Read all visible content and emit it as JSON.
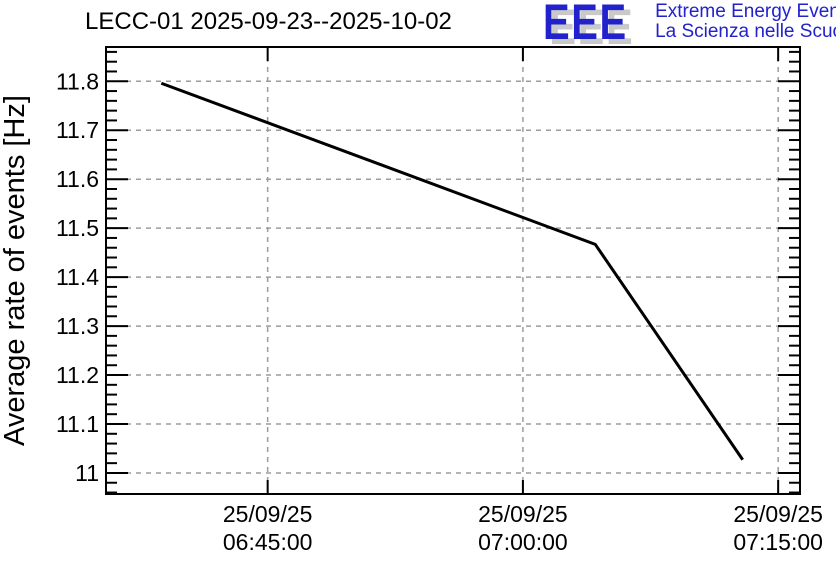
{
  "header": {
    "title": "LECC-01 2025-09-23--2025-10-02"
  },
  "logo": {
    "letters": "EEE",
    "line1": "Extreme Energy Events",
    "line2": "La Scienza nelle Scuole",
    "text_color": "#2222cc",
    "shadow_color": "#c9c9c9"
  },
  "chart_data": {
    "type": "line",
    "title": "LECC-01 2025-09-23--2025-10-02",
    "ylabel": "Average rate of events [Hz]",
    "xlabel": "",
    "grid": true,
    "legend": "none",
    "line_color": "#000000",
    "points": [
      {
        "time": "25/09/25 06:38:45",
        "seconds": 23925,
        "rate_hz": 11.796
      },
      {
        "time": "25/09/25 07:04:15",
        "seconds": 25455,
        "rate_hz": 11.467
      },
      {
        "time": "25/09/25 07:12:55",
        "seconds": 25975,
        "rate_hz": 11.027
      }
    ],
    "xticks": [
      {
        "seconds": 24300,
        "label_date": "25/09/25",
        "label_time": "06:45:00"
      },
      {
        "seconds": 25200,
        "label_date": "25/09/25",
        "label_time": "07:00:00"
      },
      {
        "seconds": 26100,
        "label_date": "25/09/25",
        "label_time": "07:15:00"
      }
    ],
    "yticks": [
      {
        "value": 11.0,
        "label": "11"
      },
      {
        "value": 11.1,
        "label": "11.1"
      },
      {
        "value": 11.2,
        "label": "11.2"
      },
      {
        "value": 11.3,
        "label": "11.3"
      },
      {
        "value": 11.4,
        "label": "11.4"
      },
      {
        "value": 11.5,
        "label": "11.5"
      },
      {
        "value": 11.6,
        "label": "11.6"
      },
      {
        "value": 11.7,
        "label": "11.7"
      },
      {
        "value": 11.8,
        "label": "11.8"
      }
    ],
    "y_minor_step": 0.02,
    "xlim_seconds": [
      23730,
      26177
    ],
    "ylim": [
      10.957,
      11.87
    ]
  }
}
